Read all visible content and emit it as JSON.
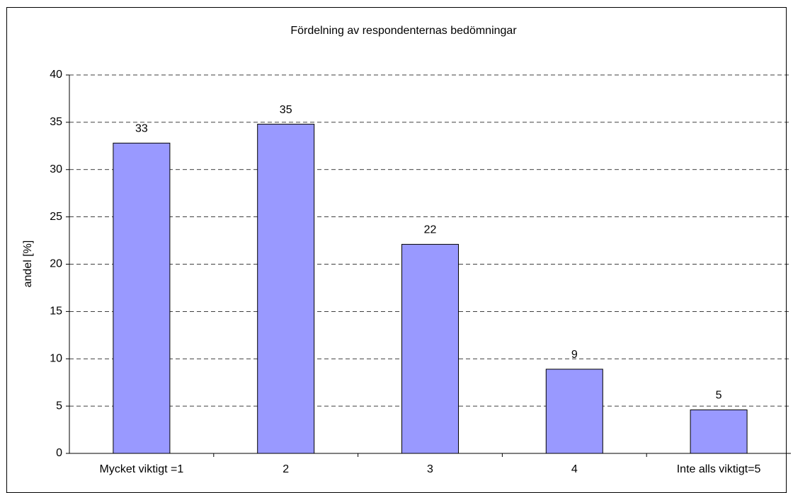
{
  "chart_data": {
    "type": "bar",
    "title": "Fördelning av respondenternas bedömningar",
    "y_label": "andel [%]",
    "categories": [
      "Mycket viktigt =1",
      "2",
      "3",
      "4",
      "Inte alls viktigt=5"
    ],
    "values": [
      32.8,
      34.8,
      22.1,
      8.9,
      4.6
    ],
    "value_labels": [
      "33",
      "35",
      "22",
      "9",
      "5"
    ],
    "color": "#9999ff",
    "ylim": [
      0,
      40
    ],
    "yticks": [
      0,
      5,
      10,
      15,
      20,
      25,
      30,
      35,
      40
    ],
    "grid": true
  }
}
